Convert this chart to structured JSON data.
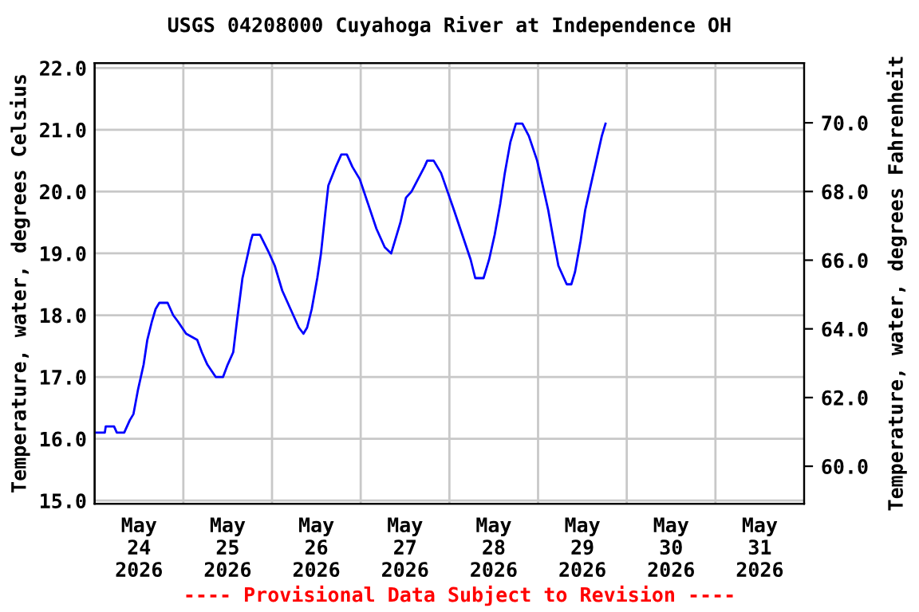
{
  "chart_data": {
    "type": "line",
    "title": "USGS 04208000 Cuyahoga River at Independence OH",
    "ylabel": "Temperature, water, degrees Celsius",
    "y2label": "Temperature, water, degrees Fahrenheit",
    "annotations": [
      "---- Provisional Data Subject to Revision ----"
    ],
    "x": [
      "2026-05-24T00:00",
      "2026-05-24T02:45",
      "2026-05-24T03:00",
      "2026-05-24T05:15",
      "2026-05-24T06:00",
      "2026-05-24T08:00",
      "2026-05-24T09:30",
      "2026-05-24T10:30",
      "2026-05-24T11:45",
      "2026-05-24T13:15",
      "2026-05-24T14:15",
      "2026-05-24T15:30",
      "2026-05-24T16:30",
      "2026-05-24T17:30",
      "2026-05-24T19:45",
      "2026-05-24T21:15",
      "2026-05-24T22:30",
      "2026-05-25T00:45",
      "2026-05-25T03:45",
      "2026-05-25T05:00",
      "2026-05-25T06:30",
      "2026-05-25T08:45",
      "2026-05-25T10:45",
      "2026-05-25T12:00",
      "2026-05-25T13:30",
      "2026-05-25T14:30",
      "2026-05-25T16:00",
      "2026-05-25T17:30",
      "2026-05-25T18:15",
      "2026-05-25T18:45",
      "2026-05-25T20:45",
      "2026-05-25T23:15",
      "2026-05-26T00:45",
      "2026-05-26T02:45",
      "2026-05-26T05:00",
      "2026-05-26T07:15",
      "2026-05-26T08:30",
      "2026-05-26T09:30",
      "2026-05-26T10:45",
      "2026-05-26T12:15",
      "2026-05-26T13:15",
      "2026-05-26T14:30",
      "2026-05-26T15:15",
      "2026-05-26T17:15",
      "2026-05-26T18:45",
      "2026-05-26T20:15",
      "2026-05-26T21:45",
      "2026-05-26T23:45",
      "2026-05-27T02:00",
      "2026-05-27T04:15",
      "2026-05-27T06:30",
      "2026-05-27T08:15",
      "2026-05-27T09:15",
      "2026-05-27T10:45",
      "2026-05-27T12:15",
      "2026-05-27T13:45",
      "2026-05-27T15:30",
      "2026-05-27T17:15",
      "2026-05-27T18:00",
      "2026-05-27T19:45",
      "2026-05-27T21:45",
      "2026-05-27T23:30",
      "2026-05-28T01:15",
      "2026-05-28T03:30",
      "2026-05-28T05:45",
      "2026-05-28T07:00",
      "2026-05-28T09:15",
      "2026-05-28T10:45",
      "2026-05-28T12:15",
      "2026-05-28T13:45",
      "2026-05-28T15:00",
      "2026-05-28T16:30",
      "2026-05-28T18:00",
      "2026-05-28T19:45",
      "2026-05-28T21:30",
      "2026-05-28T23:45",
      "2026-05-29T01:15",
      "2026-05-29T02:45",
      "2026-05-29T04:15",
      "2026-05-29T05:30",
      "2026-05-29T07:00",
      "2026-05-29T07:45",
      "2026-05-29T09:00",
      "2026-05-29T10:00",
      "2026-05-29T11:30",
      "2026-05-29T12:45",
      "2026-05-29T14:15",
      "2026-05-29T15:45",
      "2026-05-29T17:15",
      "2026-05-29T18:15"
    ],
    "series": [
      {
        "color": "#0000ff",
        "values": [
          16.1,
          16.1,
          16.2,
          16.2,
          16.1,
          16.1,
          16.3,
          16.4,
          16.8,
          17.2,
          17.6,
          17.9,
          18.1,
          18.2,
          18.2,
          18.0,
          17.9,
          17.7,
          17.6,
          17.4,
          17.2,
          17.0,
          17.0,
          17.2,
          17.4,
          17.9,
          18.6,
          19.0,
          19.2,
          19.3,
          19.3,
          19.0,
          18.8,
          18.4,
          18.1,
          17.8,
          17.7,
          17.8,
          18.1,
          18.6,
          19.0,
          19.7,
          20.1,
          20.4,
          20.6,
          20.6,
          20.4,
          20.2,
          19.8,
          19.4,
          19.1,
          19.0,
          19.2,
          19.5,
          19.9,
          20.0,
          20.2,
          20.4,
          20.5,
          20.5,
          20.3,
          20.0,
          19.7,
          19.3,
          18.9,
          18.6,
          18.6,
          18.9,
          19.3,
          19.8,
          20.3,
          20.8,
          21.1,
          21.1,
          20.9,
          20.5,
          20.1,
          19.7,
          19.2,
          18.8,
          18.6,
          18.5,
          18.5,
          18.7,
          19.2,
          19.7,
          20.1,
          20.5,
          20.9,
          21.1
        ]
      }
    ],
    "xlim": [
      "2026-05-24T00:00",
      "2026-06-01T00:00"
    ],
    "xticks": [
      {
        "value": "2026-05-25T00:00",
        "label": null
      },
      {
        "value": "2026-05-26T00:00",
        "label": null
      },
      {
        "value": "2026-05-27T00:00",
        "label": null
      },
      {
        "value": "2026-05-28T00:00",
        "label": null
      },
      {
        "value": "2026-05-29T00:00",
        "label": null
      },
      {
        "value": "2026-05-30T00:00",
        "label": null
      },
      {
        "value": "2026-05-31T00:00",
        "label": null
      },
      {
        "value": "2026-05-24T12:00",
        "label": "May\n24\n2026"
      },
      {
        "value": "2026-05-25T12:00",
        "label": "May\n25\n2026"
      },
      {
        "value": "2026-05-26T12:00",
        "label": "May\n26\n2026"
      },
      {
        "value": "2026-05-27T12:00",
        "label": "May\n27\n2026"
      },
      {
        "value": "2026-05-28T12:00",
        "label": "May\n28\n2026"
      },
      {
        "value": "2026-05-29T12:00",
        "label": "May\n29\n2026"
      },
      {
        "value": "2026-05-30T12:00",
        "label": "May\n30\n2026"
      },
      {
        "value": "2026-05-31T12:00",
        "label": "May\n31\n2026"
      }
    ],
    "ylim": [
      14.95,
      22.08
    ],
    "yticks": [
      {
        "value": 15,
        "label": "15.0"
      },
      {
        "value": 16,
        "label": "16.0"
      },
      {
        "value": 17,
        "label": "17.0"
      },
      {
        "value": 18,
        "label": "18.0"
      },
      {
        "value": 19,
        "label": "19.0"
      },
      {
        "value": 20,
        "label": "20.0"
      },
      {
        "value": 21,
        "label": "21.0"
      },
      {
        "value": 22,
        "label": "22.0"
      }
    ],
    "y2lim": [
      58.91,
      71.74
    ],
    "y2ticks": [
      {
        "value": 60,
        "label": "60.0"
      },
      {
        "value": 62,
        "label": "62.0"
      },
      {
        "value": 64,
        "label": "64.0"
      },
      {
        "value": 66,
        "label": "66.0"
      },
      {
        "value": 68,
        "label": "68.0"
      },
      {
        "value": 70,
        "label": "70.0"
      }
    ],
    "grid": true,
    "line_style": "solid"
  }
}
